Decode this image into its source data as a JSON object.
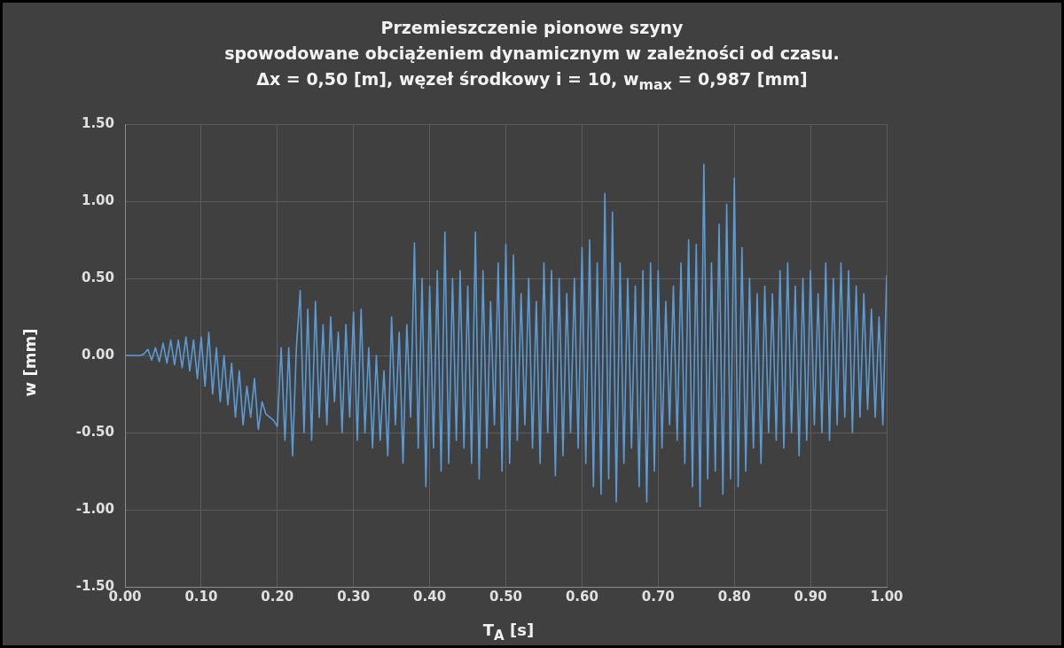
{
  "chart_data": {
    "type": "line",
    "title": "Przemieszczenie pionowe szyny\nspowodowane obciążeniem dynamicznym w zależności od czasu.\nΔx = 0,50 [m], węzeł środkowy i = 10, w$_{max}$ = 0,987 [mm]",
    "xlabel": "T$_{A}$ [s]",
    "ylabel": "w [mm]",
    "xlim": [
      0,
      1
    ],
    "ylim": [
      -1.5,
      1.5
    ],
    "xticks": [
      {
        "value": 0,
        "label": "0.00"
      },
      {
        "value": 0.1,
        "label": "0.10"
      },
      {
        "value": 0.2,
        "label": "0.20"
      },
      {
        "value": 0.3,
        "label": "0.30"
      },
      {
        "value": 0.4,
        "label": "0.40"
      },
      {
        "value": 0.5,
        "label": "0.50"
      },
      {
        "value": 0.6,
        "label": "0.60"
      },
      {
        "value": 0.7,
        "label": "0.70"
      },
      {
        "value": 0.8,
        "label": "0.80"
      },
      {
        "value": 0.9,
        "label": "0.90"
      },
      {
        "value": 1,
        "label": "1.00"
      }
    ],
    "yticks": [
      {
        "value": -1.5,
        "label": "-1.50"
      },
      {
        "value": -1,
        "label": "-1.00"
      },
      {
        "value": -0.5,
        "label": "-0.50"
      },
      {
        "value": 0,
        "label": "0.00"
      },
      {
        "value": 0.5,
        "label": "0.50"
      },
      {
        "value": 1,
        "label": "1.00"
      },
      {
        "value": 1.5,
        "label": "1.50"
      }
    ],
    "grid": true,
    "legend": false,
    "marker": "none",
    "line_style": "solid",
    "series": [
      {
        "color": "#5b9bd5",
        "x": [
          0,
          0.005,
          0.01,
          0.015,
          0.02,
          0.025,
          0.03,
          0.035,
          0.04,
          0.045,
          0.05,
          0.055,
          0.06,
          0.065,
          0.07,
          0.075,
          0.08,
          0.085,
          0.09,
          0.095,
          0.1,
          0.105,
          0.11,
          0.115,
          0.12,
          0.125,
          0.13,
          0.135,
          0.14,
          0.145,
          0.15,
          0.155,
          0.16,
          0.165,
          0.17,
          0.175,
          0.18,
          0.185,
          0.19,
          0.195,
          0.2,
          0.205,
          0.21,
          0.215,
          0.22,
          0.225,
          0.23,
          0.235,
          0.24,
          0.245,
          0.25,
          0.255,
          0.26,
          0.265,
          0.27,
          0.275,
          0.28,
          0.285,
          0.29,
          0.295,
          0.3,
          0.305,
          0.31,
          0.315,
          0.32,
          0.325,
          0.33,
          0.335,
          0.34,
          0.345,
          0.35,
          0.355,
          0.36,
          0.365,
          0.37,
          0.375,
          0.38,
          0.385,
          0.39,
          0.395,
          0.4,
          0.405,
          0.41,
          0.415,
          0.42,
          0.425,
          0.43,
          0.435,
          0.44,
          0.445,
          0.45,
          0.455,
          0.46,
          0.465,
          0.47,
          0.475,
          0.48,
          0.485,
          0.49,
          0.495,
          0.5,
          0.505,
          0.51,
          0.515,
          0.52,
          0.525,
          0.53,
          0.535,
          0.54,
          0.545,
          0.55,
          0.555,
          0.56,
          0.565,
          0.57,
          0.575,
          0.58,
          0.585,
          0.59,
          0.595,
          0.6,
          0.605,
          0.61,
          0.615,
          0.62,
          0.625,
          0.63,
          0.635,
          0.64,
          0.645,
          0.65,
          0.655,
          0.66,
          0.665,
          0.67,
          0.675,
          0.68,
          0.685,
          0.69,
          0.695,
          0.7,
          0.705,
          0.71,
          0.715,
          0.72,
          0.725,
          0.73,
          0.735,
          0.74,
          0.745,
          0.75,
          0.755,
          0.76,
          0.765,
          0.77,
          0.775,
          0.78,
          0.785,
          0.79,
          0.795,
          0.8,
          0.805,
          0.81,
          0.815,
          0.82,
          0.825,
          0.83,
          0.835,
          0.84,
          0.845,
          0.85,
          0.855,
          0.86,
          0.865,
          0.87,
          0.875,
          0.88,
          0.885,
          0.89,
          0.895,
          0.9,
          0.905,
          0.91,
          0.915,
          0.92,
          0.925,
          0.93,
          0.935,
          0.94,
          0.945,
          0.95,
          0.955,
          0.96,
          0.965,
          0.97,
          0.975,
          0.98,
          0.985,
          0.99,
          0.995,
          1
        ],
        "values": [
          0,
          0,
          0,
          0,
          0,
          0.01,
          0.04,
          -0.03,
          0.05,
          -0.04,
          0.08,
          -0.05,
          0.1,
          -0.06,
          0.1,
          -0.08,
          0.12,
          -0.1,
          0.1,
          -0.15,
          0.12,
          -0.2,
          0.15,
          -0.25,
          0.05,
          -0.3,
          0,
          -0.32,
          -0.05,
          -0.4,
          -0.1,
          -0.45,
          -0.2,
          -0.4,
          -0.15,
          -0.48,
          -0.3,
          -0.38,
          -0.4,
          -0.42,
          -0.46,
          0.05,
          -0.55,
          0.05,
          -0.65,
          0.05,
          0.42,
          -0.5,
          0.3,
          -0.55,
          0.35,
          -0.4,
          0.2,
          -0.45,
          0.25,
          -0.3,
          0.15,
          -0.5,
          0.2,
          -0.4,
          0.28,
          -0.55,
          0.3,
          -0.5,
          0.05,
          -0.6,
          0,
          -0.55,
          -0.1,
          -0.65,
          0.25,
          -0.45,
          0.15,
          -0.7,
          0.2,
          -0.4,
          0.73,
          -0.6,
          0.5,
          -0.85,
          0.45,
          -0.6,
          0.55,
          -0.75,
          0.8,
          -0.7,
          0.5,
          -0.55,
          0.55,
          -0.6,
          0.45,
          -0.7,
          0.8,
          -0.8,
          0.55,
          -0.6,
          0.35,
          -0.45,
          0.6,
          -0.75,
          0.72,
          -0.7,
          0.65,
          -0.55,
          0.4,
          -0.45,
          0.5,
          -0.6,
          0.35,
          -0.7,
          0.6,
          -0.5,
          0.55,
          -0.78,
          0.5,
          -0.65,
          0.4,
          -0.5,
          0.5,
          -0.6,
          0.7,
          -0.7,
          0.75,
          -0.85,
          0.6,
          -0.9,
          1.05,
          -0.8,
          0.93,
          -0.95,
          0.6,
          -0.7,
          0.5,
          -0.6,
          0.45,
          -0.85,
          0.55,
          -0.95,
          0.6,
          -0.75,
          0.55,
          -0.6,
          0.35,
          -0.45,
          0.45,
          -0.55,
          0.6,
          -0.7,
          0.75,
          -0.85,
          0.72,
          -0.98,
          1.24,
          -0.8,
          0.6,
          -0.75,
          0.85,
          -0.9,
          0.98,
          -0.8,
          1.15,
          -0.85,
          0.7,
          -0.75,
          0.5,
          -0.6,
          0.4,
          -0.7,
          0.45,
          -0.5,
          0.4,
          -0.55,
          0.55,
          -0.6,
          0.6,
          -0.5,
          0.45,
          -0.65,
          0.5,
          -0.55,
          0.55,
          -0.45,
          0.4,
          -0.5,
          0.6,
          -0.55,
          0.5,
          -0.45,
          0.6,
          -0.4,
          0.55,
          -0.5,
          0.45,
          -0.4,
          0.4,
          -0.35,
          0.3,
          -0.4,
          0.25,
          -0.45,
          0.52
        ]
      }
    ]
  }
}
